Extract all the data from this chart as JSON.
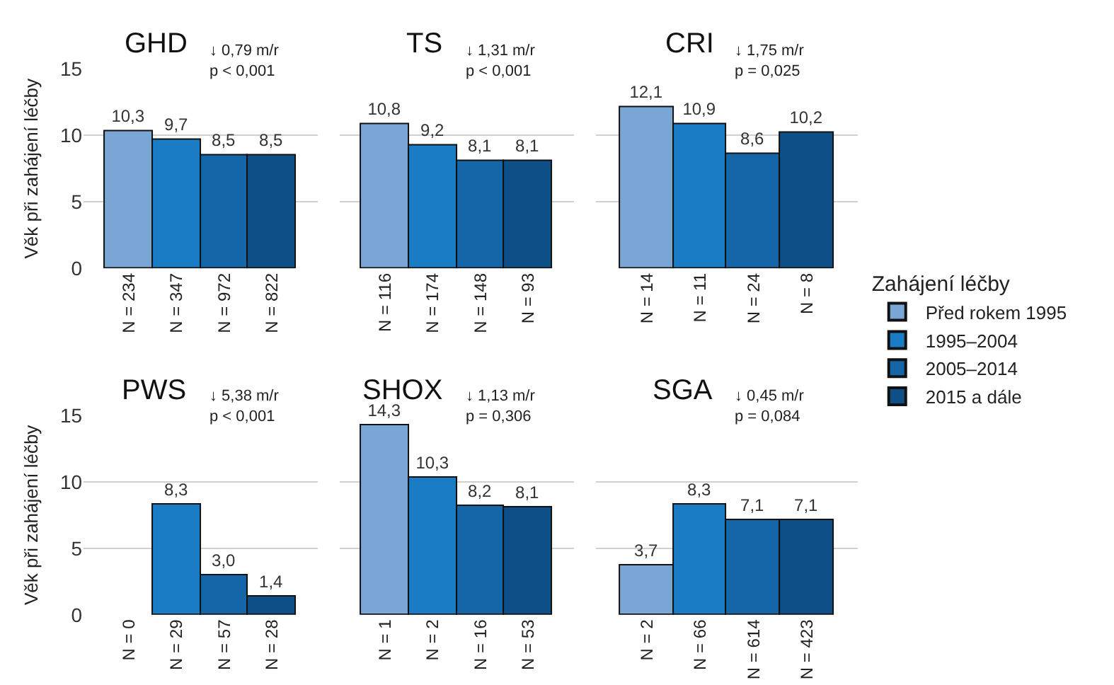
{
  "chart_data": [
    {
      "type": "bar",
      "title": "GHD",
      "ylabel": "Věk při zahájení léčby",
      "categories": [
        "N = 234",
        "N = 347",
        "N = 972",
        "N = 822"
      ],
      "annotations": [
        "↓ 0,79 m/r\np < 0,001"
      ],
      "ylim": [
        0,
        15
      ],
      "yticks": [
        0,
        5,
        10,
        15
      ],
      "grid": "y",
      "series": [
        {
          "color": "#7aa6d6",
          "values": [
            10.3,
            null,
            null,
            null
          ],
          "value_labels": [
            "10,3",
            null,
            null,
            null
          ]
        },
        {
          "color": "#1a7cc4",
          "values": [
            null,
            9.7,
            null,
            null
          ],
          "value_labels": [
            null,
            "9,7",
            null,
            null
          ]
        },
        {
          "color": "#1566a8",
          "values": [
            null,
            null,
            8.5,
            null
          ],
          "value_labels": [
            null,
            null,
            "8,5",
            null
          ]
        },
        {
          "color": "#0d4f86",
          "values": [
            null,
            null,
            null,
            8.5
          ],
          "value_labels": [
            null,
            null,
            null,
            "8,5"
          ]
        }
      ]
    },
    {
      "type": "bar",
      "title": "TS",
      "categories": [
        "N = 116",
        "N = 174",
        "N = 148",
        "N = 93"
      ],
      "annotations": [
        "↓ 1,31 m/r\np < 0,001"
      ],
      "ylim": [
        0,
        15
      ],
      "yticks": [
        0,
        5,
        10,
        15
      ],
      "grid": "y",
      "tick_labels": "x",
      "series": [
        {
          "color": "#7aa6d6",
          "values": [
            10.8,
            null,
            null,
            null
          ],
          "value_labels": [
            "10,8",
            null,
            null,
            null
          ]
        },
        {
          "color": "#1a7cc4",
          "values": [
            null,
            9.2,
            null,
            null
          ],
          "value_labels": [
            null,
            "9,2",
            null,
            null
          ]
        },
        {
          "color": "#1566a8",
          "values": [
            null,
            null,
            8.1,
            null
          ],
          "value_labels": [
            null,
            null,
            "8,1",
            null
          ]
        },
        {
          "color": "#0d4f86",
          "values": [
            null,
            null,
            null,
            8.1
          ],
          "value_labels": [
            null,
            null,
            null,
            "8,1"
          ]
        }
      ]
    },
    {
      "type": "bar",
      "title": "CRI",
      "legend_title": "Zahájení léčby",
      "categories": [
        "N = 14",
        "N = 11",
        "N = 24",
        "N = 8"
      ],
      "annotations": [
        "↓ 1,75 m/r\np = 0,025"
      ],
      "ylim": [
        0,
        15
      ],
      "yticks": [
        0,
        5,
        10,
        15
      ],
      "grid": "y",
      "legend": "right",
      "tick_labels": "x",
      "series": [
        {
          "name": "Před rokem 1995",
          "color": "#7aa6d6",
          "values": [
            12.1,
            null,
            null,
            null
          ],
          "value_labels": [
            "12,1",
            null,
            null,
            null
          ]
        },
        {
          "name": "1995–2004",
          "color": "#1a7cc4",
          "values": [
            null,
            10.9,
            null,
            null
          ],
          "value_labels": [
            null,
            "10,9",
            null,
            null
          ]
        },
        {
          "name": "2005–2014",
          "color": "#1566a8",
          "values": [
            null,
            null,
            8.6,
            null
          ],
          "value_labels": [
            null,
            null,
            "8,6",
            null
          ]
        },
        {
          "name": "2015 a dále",
          "color": "#0d4f86",
          "values": [
            null,
            null,
            null,
            10.2
          ],
          "value_labels": [
            null,
            null,
            null,
            "10,2"
          ]
        }
      ]
    },
    {
      "type": "bar",
      "title": "PWS",
      "ylabel": "Věk při zahájení léčby",
      "categories": [
        "N = 0",
        "N = 29",
        "N = 57",
        "N = 28"
      ],
      "annotations": [
        "↓ 5,38 m/r\np < 0,001"
      ],
      "ylim": [
        0,
        15
      ],
      "yticks": [
        0,
        5,
        10,
        15
      ],
      "grid": "y",
      "series": [
        {
          "color": "#1a7cc4",
          "values": [
            null,
            8.3,
            null,
            null
          ],
          "value_labels": [
            null,
            "8,3",
            null,
            null
          ]
        },
        {
          "color": "#1566a8",
          "values": [
            null,
            null,
            3.0,
            null
          ],
          "value_labels": [
            null,
            null,
            "3,0",
            null
          ]
        },
        {
          "color": "#0d4f86",
          "values": [
            null,
            null,
            null,
            1.4
          ],
          "value_labels": [
            null,
            null,
            null,
            "1,4"
          ]
        }
      ]
    },
    {
      "type": "bar",
      "title": "SHOX",
      "categories": [
        "N = 1",
        "N = 2",
        "N = 16",
        "N = 53"
      ],
      "annotations": [
        "↓ 1,13 m/r\np = 0,306"
      ],
      "ylim": [
        0,
        15
      ],
      "yticks": [
        0,
        5,
        10,
        15
      ],
      "grid": "y",
      "tick_labels": "x",
      "series": [
        {
          "color": "#7aa6d6",
          "values": [
            14.3,
            null,
            null,
            null
          ],
          "value_labels": [
            "14,3",
            null,
            null,
            null
          ]
        },
        {
          "color": "#1a7cc4",
          "values": [
            null,
            10.3,
            null,
            null
          ],
          "value_labels": [
            null,
            "10,3",
            null,
            null
          ]
        },
        {
          "color": "#1566a8",
          "values": [
            null,
            null,
            8.2,
            null
          ],
          "value_labels": [
            null,
            null,
            "8,2",
            null
          ]
        },
        {
          "color": "#0d4f86",
          "values": [
            null,
            null,
            null,
            8.1
          ],
          "value_labels": [
            null,
            null,
            null,
            "8,1"
          ]
        }
      ]
    },
    {
      "type": "bar",
      "title": "SGA",
      "categories": [
        "N = 2",
        "N = 66",
        "N = 614",
        "N = 423"
      ],
      "annotations": [
        "↓ 0,45 m/r\np = 0,084"
      ],
      "ylim": [
        0,
        15
      ],
      "yticks": [
        0,
        5,
        10,
        15
      ],
      "grid": "y",
      "tick_labels": "x",
      "series": [
        {
          "color": "#7aa6d6",
          "values": [
            3.7,
            null,
            null,
            null
          ],
          "value_labels": [
            "3,7",
            null,
            null,
            null
          ]
        },
        {
          "color": "#1a7cc4",
          "values": [
            null,
            8.3,
            null,
            null
          ],
          "value_labels": [
            null,
            "8,3",
            null,
            null
          ]
        },
        {
          "color": "#1566a8",
          "values": [
            null,
            null,
            7.1,
            null
          ],
          "value_labels": [
            null,
            null,
            "7,1",
            null
          ]
        },
        {
          "color": "#0d4f86",
          "values": [
            null,
            null,
            null,
            7.1
          ],
          "value_labels": [
            null,
            null,
            null,
            "7,1"
          ]
        }
      ]
    }
  ]
}
